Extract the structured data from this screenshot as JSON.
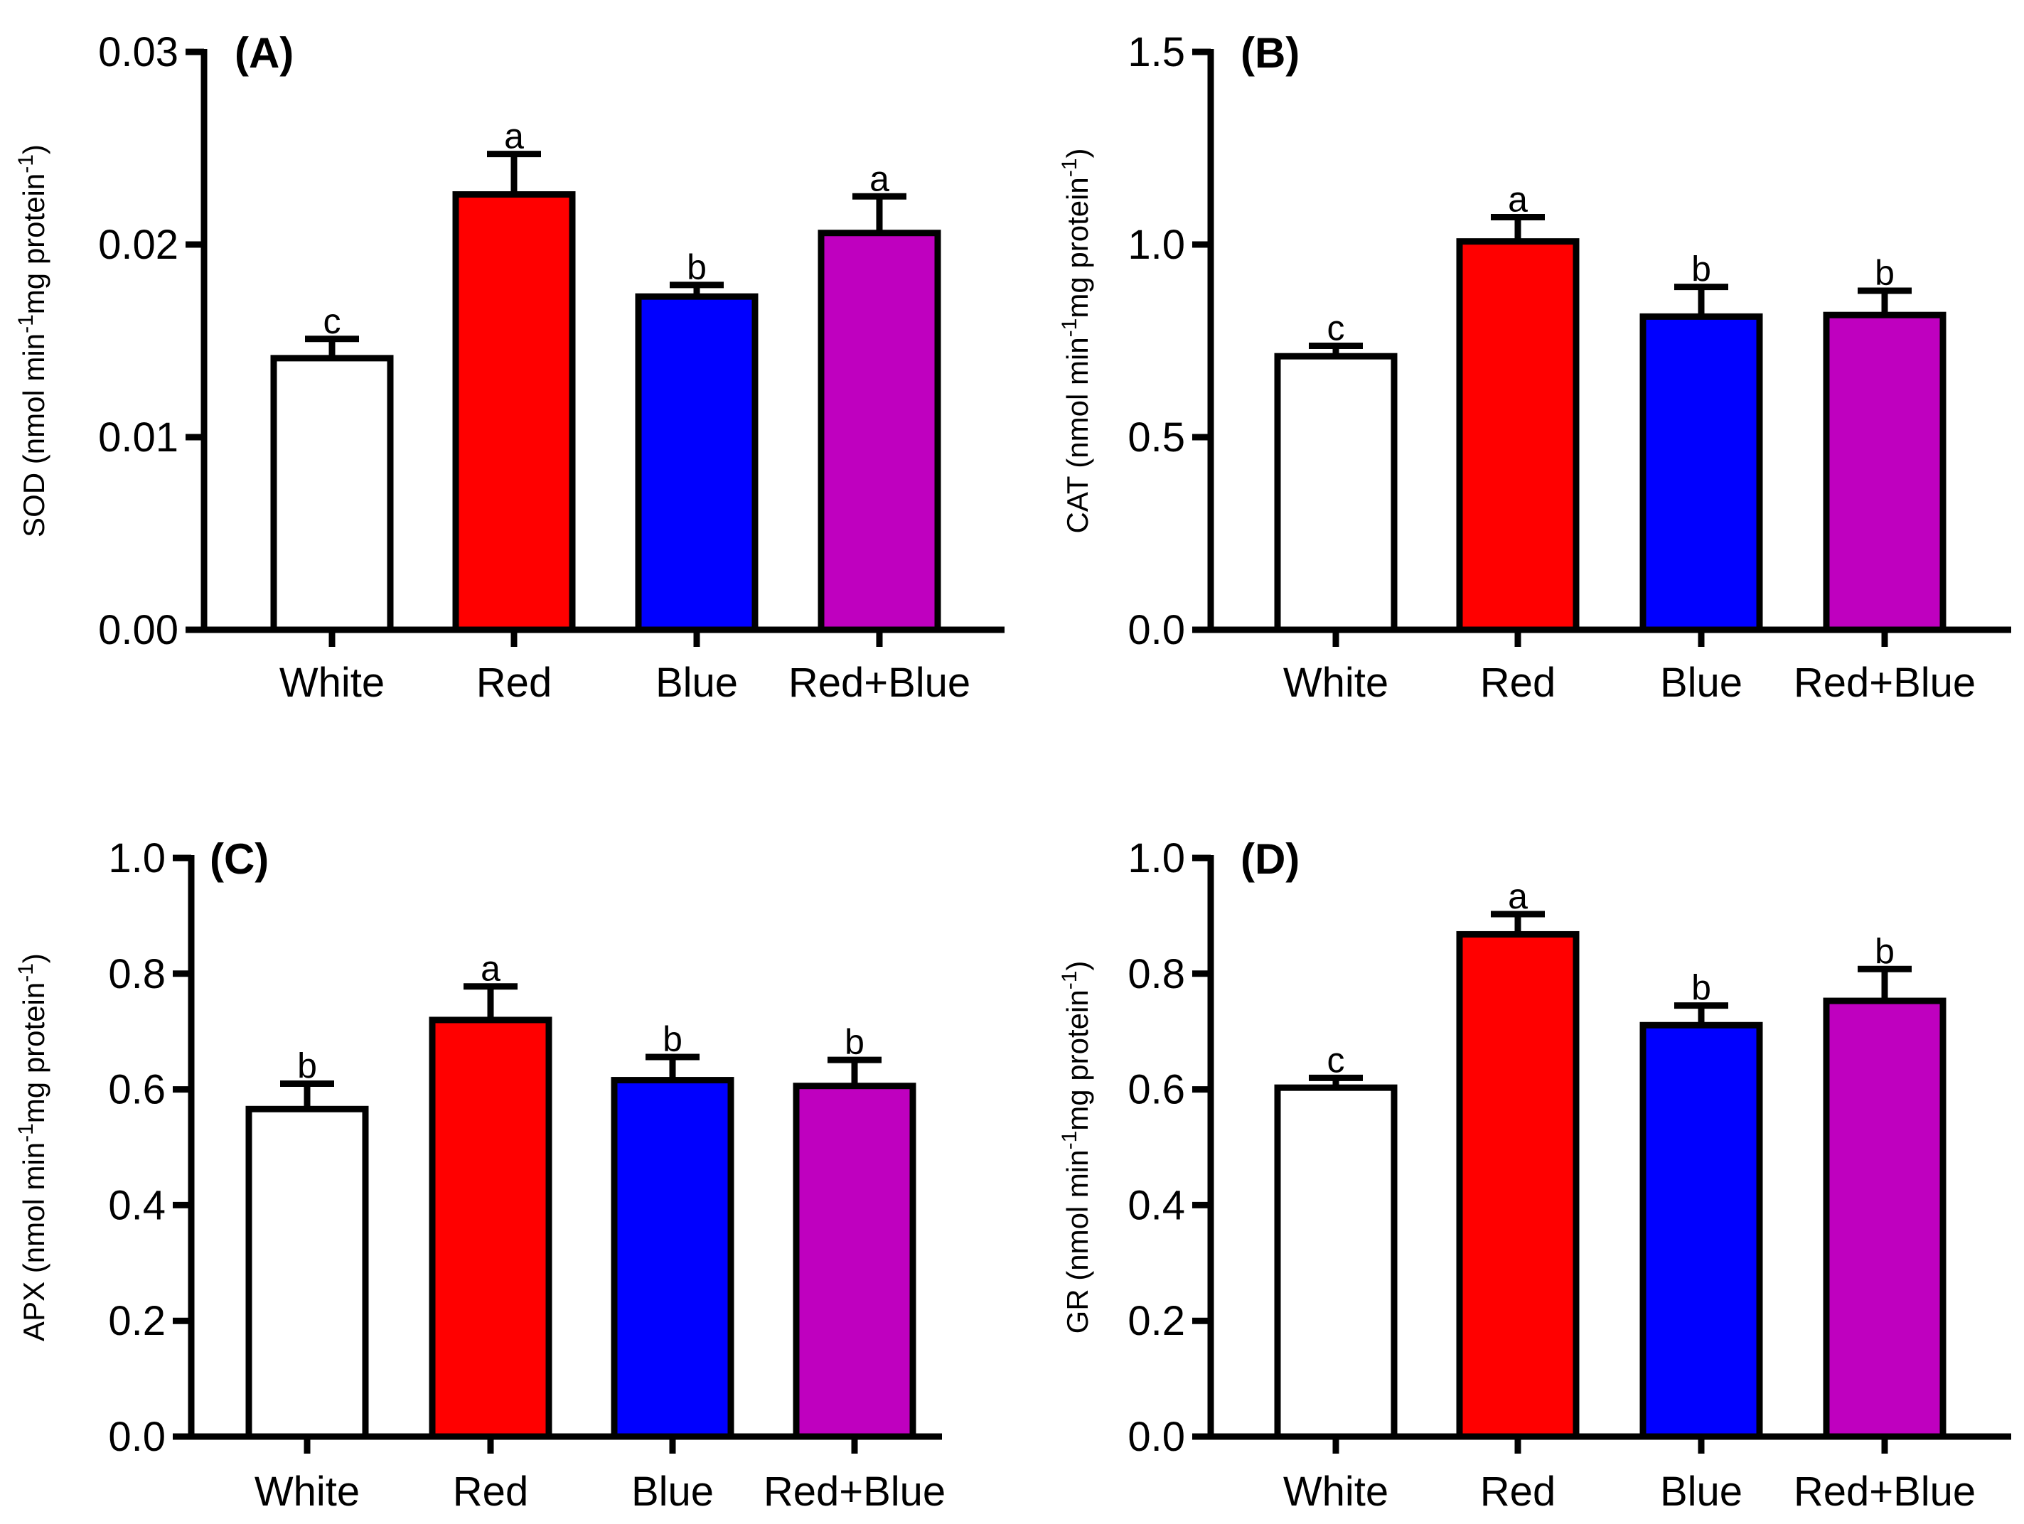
{
  "chart_data": [
    {
      "type": "bar",
      "title": "(A)",
      "ylabel": "SOD (nmol min",
      "ylabel_parts": [
        "SOD (nmol min",
        "-1",
        "mg protein",
        "-1",
        ")"
      ],
      "categories": [
        "White",
        "Red",
        "Blue",
        "Red+Blue"
      ],
      "values": [
        0.0141,
        0.0226,
        0.0173,
        0.0206
      ],
      "errors": [
        0.001,
        0.0021,
        0.0006,
        0.0019
      ],
      "letters": [
        "c",
        "a",
        "b",
        "a"
      ],
      "ylim": [
        0,
        0.03
      ],
      "yticks": [
        0,
        0.01,
        0.02,
        0.03
      ],
      "yticklabels": [
        "0.00",
        "0.01",
        "0.02",
        "0.03"
      ]
    },
    {
      "type": "bar",
      "title": "(B)",
      "ylabel_parts": [
        "CAT (nmol min",
        "-1",
        "mg protein",
        "-1",
        ")"
      ],
      "categories": [
        "White",
        "Red",
        "Blue",
        "Red+Blue"
      ],
      "values": [
        0.71,
        1.008,
        0.813,
        0.817
      ],
      "errors": [
        0.027,
        0.063,
        0.077,
        0.063
      ],
      "letters": [
        "c",
        "a",
        "b",
        "b"
      ],
      "ylim": [
        0,
        1.5
      ],
      "yticks": [
        0,
        0.5,
        1.0,
        1.5
      ],
      "yticklabels": [
        "0.0",
        "0.5",
        "1.0",
        "1.5"
      ]
    },
    {
      "type": "bar",
      "title": "(C)",
      "ylabel_parts": [
        "APX (nmol min",
        "-1",
        "mg protein",
        "-1",
        ")"
      ],
      "categories": [
        "White",
        "Red",
        "Blue",
        "Red+Blue"
      ],
      "values": [
        0.566,
        0.72,
        0.616,
        0.606
      ],
      "errors": [
        0.044,
        0.058,
        0.04,
        0.045
      ],
      "letters": [
        "b",
        "a",
        "b",
        "b"
      ],
      "ylim": [
        0,
        1.0
      ],
      "yticks": [
        0,
        0.2,
        0.4,
        0.6,
        0.8,
        1.0
      ],
      "yticklabels": [
        "0.0",
        "0.2",
        "0.4",
        "0.6",
        "0.8",
        "1.0"
      ]
    },
    {
      "type": "bar",
      "title": "(D)",
      "ylabel_parts": [
        "GR (nmol min",
        "-1",
        "mg protein",
        "-1",
        ")"
      ],
      "categories": [
        "White",
        "Red",
        "Blue",
        "Red+Blue"
      ],
      "values": [
        0.603,
        0.868,
        0.711,
        0.753
      ],
      "errors": [
        0.017,
        0.035,
        0.034,
        0.055
      ],
      "letters": [
        "c",
        "a",
        "b",
        "b"
      ],
      "ylim": [
        0,
        1.0
      ],
      "yticks": [
        0,
        0.2,
        0.4,
        0.6,
        0.8,
        1.0
      ],
      "yticklabels": [
        "0.0",
        "0.2",
        "0.4",
        "0.6",
        "0.8",
        "1.0"
      ]
    }
  ],
  "colors": {
    "White": "#ffffff",
    "Red": "#ff0000",
    "Blue": "#0000ff",
    "Red+Blue": "#bf00bf",
    "outline": "#000000"
  }
}
